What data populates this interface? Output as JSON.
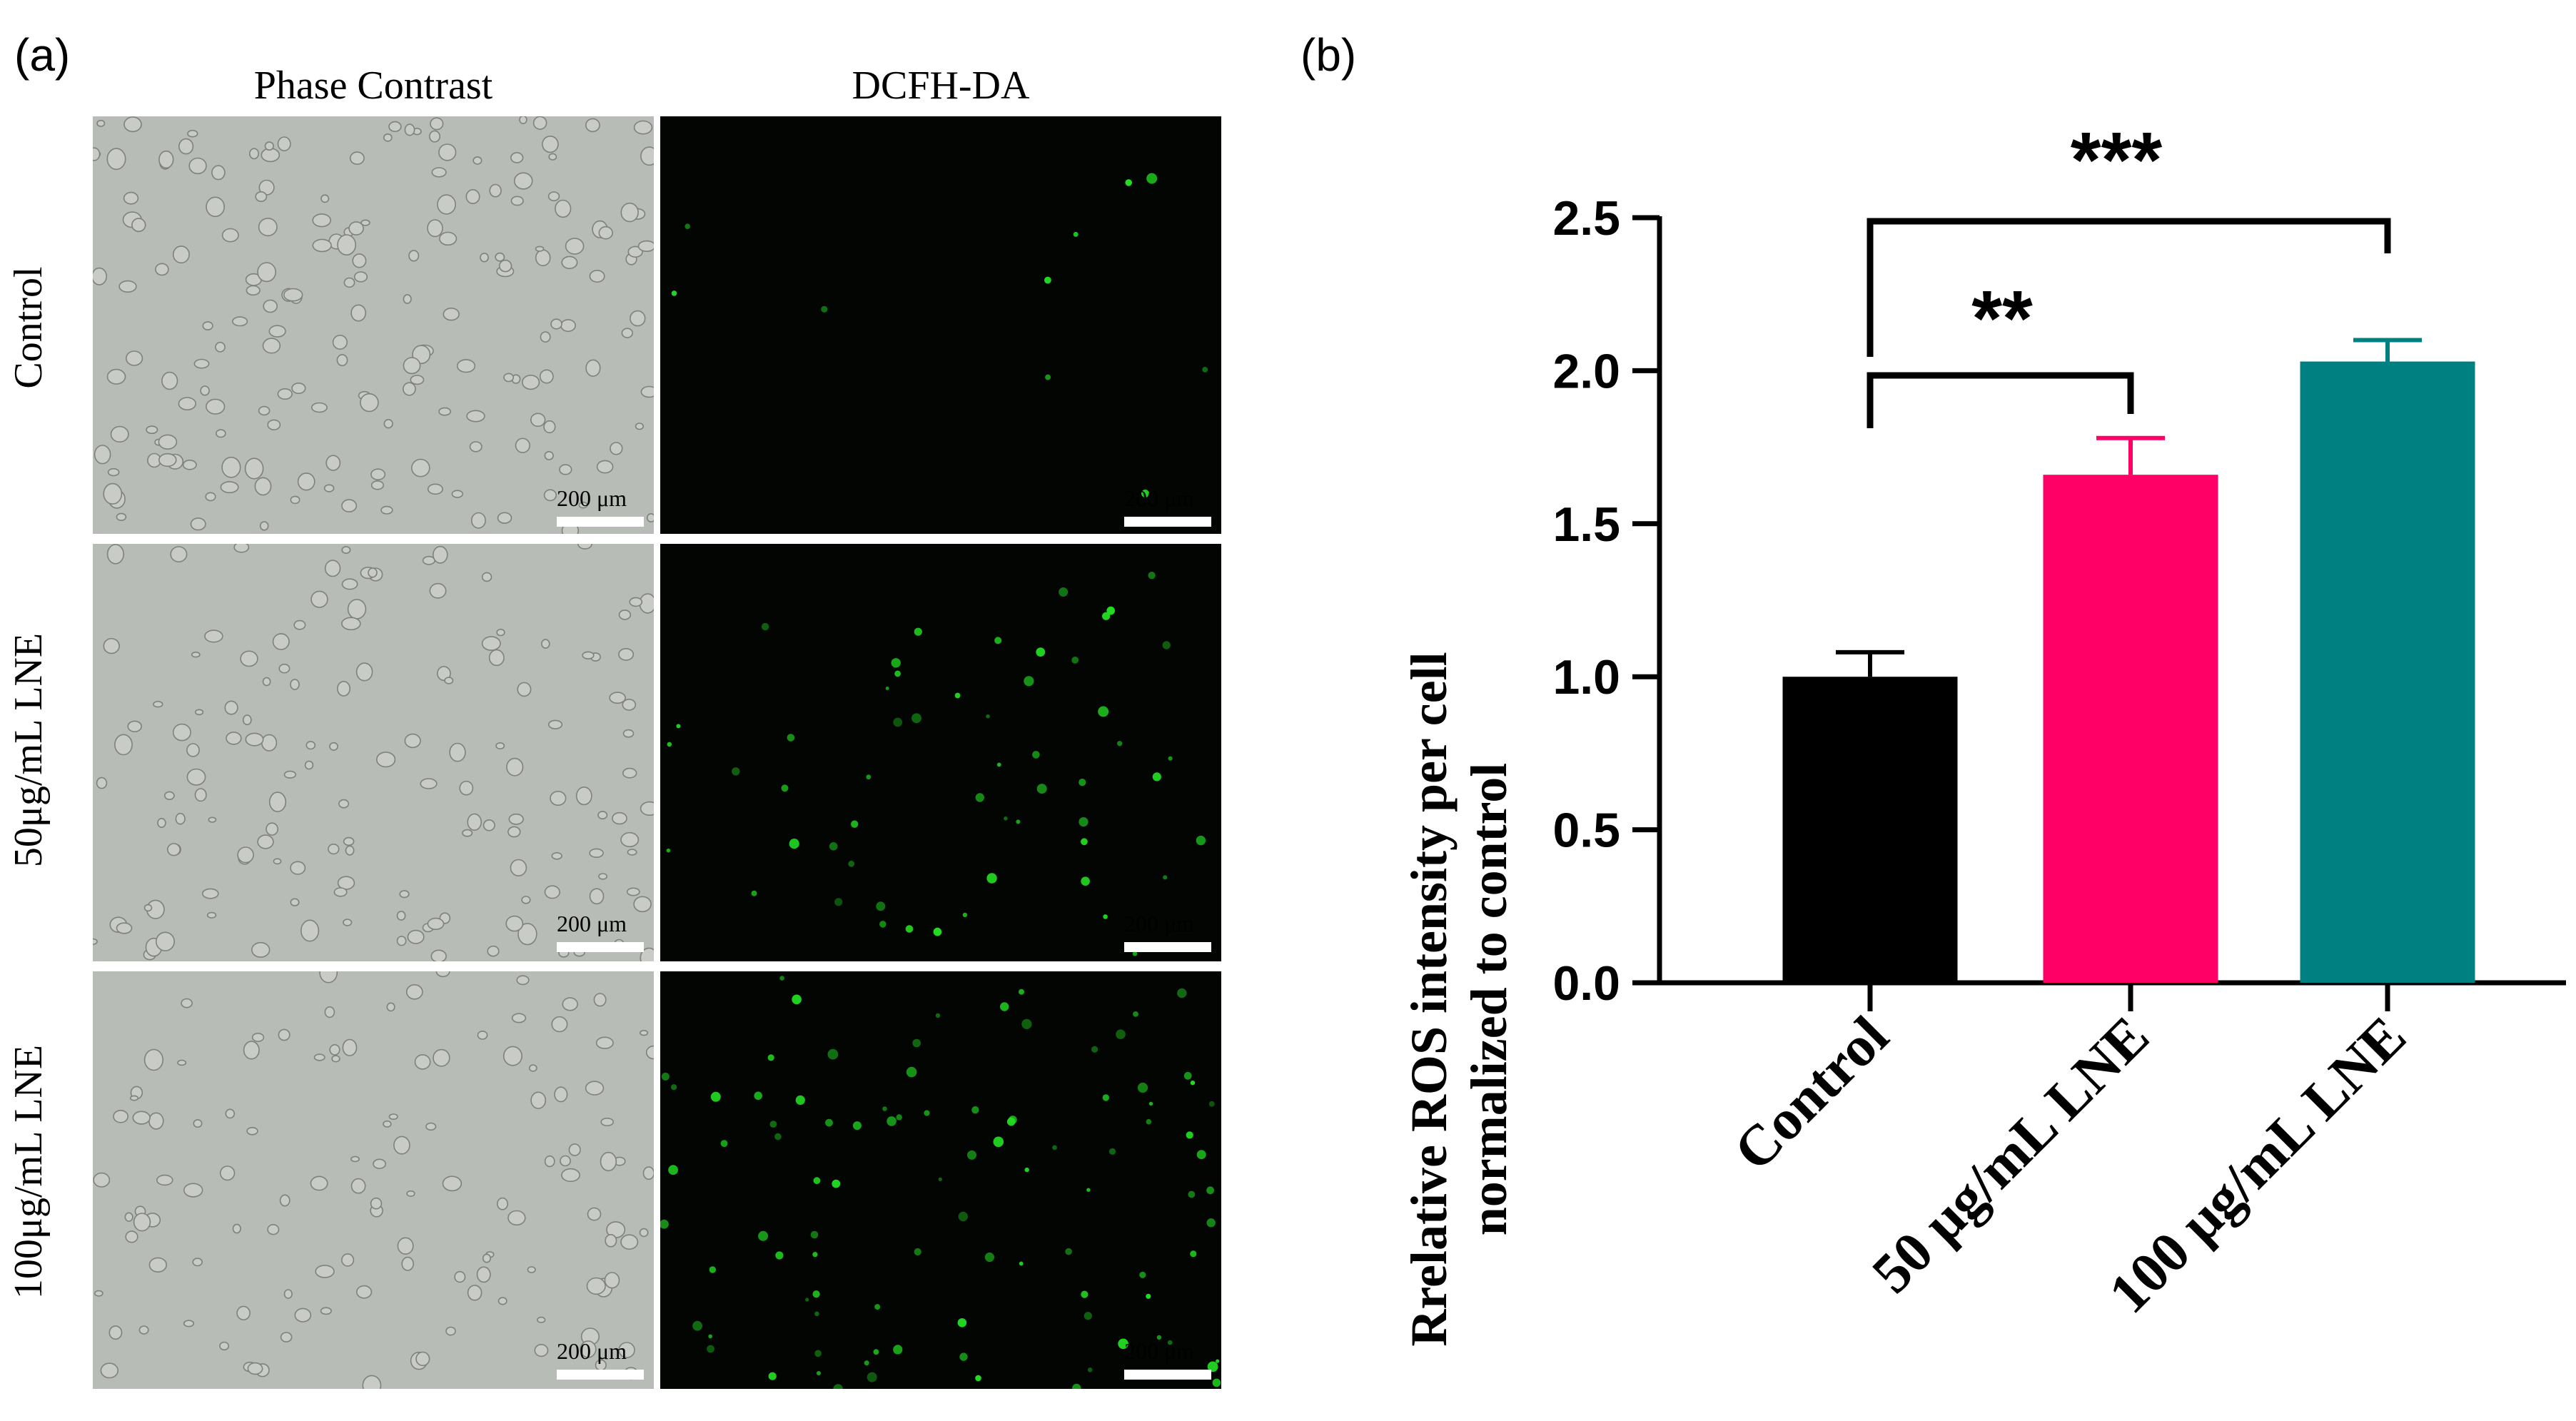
{
  "panel_a": {
    "label": "(a)",
    "columns": [
      "Phase Contrast",
      "DCFH-DA"
    ],
    "rows": [
      "Control",
      "50μg/mL LNE",
      "100μg/mL LNE"
    ],
    "scale_bar": "200 μm"
  },
  "panel_b": {
    "label": "(b)",
    "ylabel_line1": "Rrelative ROS intensity per cell",
    "ylabel_line2": "normalized to control",
    "significance": [
      "**",
      "***"
    ]
  },
  "colors": {
    "control": "#000000",
    "lne50": "#ff0066",
    "lne100": "#008080",
    "fluor": "#22dd22"
  },
  "chart_data": {
    "type": "bar",
    "categories": [
      "Control",
      "50 μg/mL LNE",
      "100 μg/mL LNE"
    ],
    "values": [
      1.0,
      1.66,
      2.03
    ],
    "errors": [
      0.08,
      0.12,
      0.07
    ],
    "ylim": [
      0,
      2.5
    ],
    "yticks": [
      "0.0",
      "0.5",
      "1.0",
      "1.5",
      "2.0",
      "2.5"
    ],
    "yticks_values": [
      0,
      0.5,
      1.0,
      1.5,
      2.0,
      2.5
    ],
    "comparisons": [
      {
        "from": 0,
        "to": 1,
        "label": "**"
      },
      {
        "from": 0,
        "to": 2,
        "label": "***"
      }
    ]
  }
}
